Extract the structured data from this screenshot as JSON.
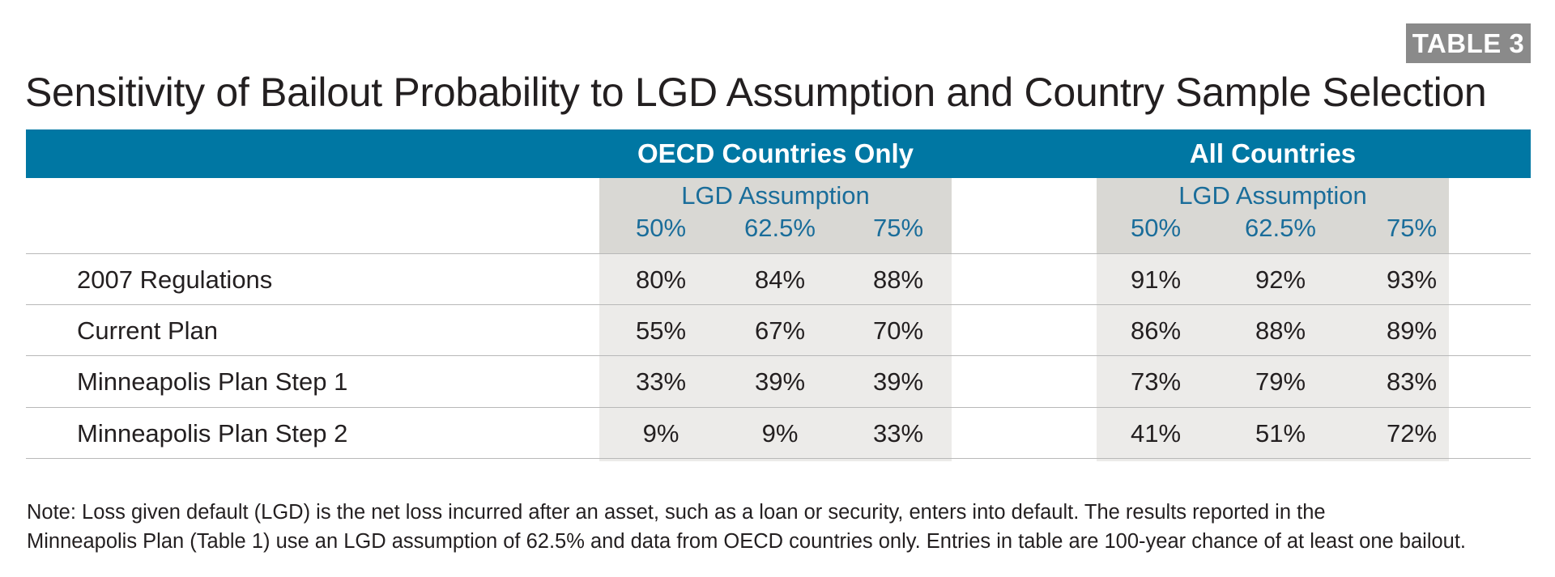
{
  "badge": "TABLE 3",
  "title": "Sensitivity of Bailout Probability to LGD Assumption and Country Sample Selection",
  "groups": [
    {
      "title": "OECD Countries Only",
      "subheader": "LGD Assumption",
      "columns": [
        "50%",
        "62.5%",
        "75%"
      ]
    },
    {
      "title": "All Countries",
      "subheader": "LGD Assumption",
      "columns": [
        "50%",
        "62.5%",
        "75%"
      ]
    }
  ],
  "rows": [
    {
      "label": "2007 Regulations",
      "oecd": [
        "80%",
        "84%",
        "88%"
      ],
      "all": [
        "91%",
        "92%",
        "93%"
      ]
    },
    {
      "label": "Current Plan",
      "oecd": [
        "55%",
        "67%",
        "70%"
      ],
      "all": [
        "86%",
        "88%",
        "89%"
      ]
    },
    {
      "label": "Minneapolis Plan Step 1",
      "oecd": [
        "33%",
        "39%",
        "39%"
      ],
      "all": [
        "73%",
        "79%",
        "83%"
      ]
    },
    {
      "label": "Minneapolis Plan Step 2",
      "oecd": [
        "9%",
        "9%",
        "33%"
      ],
      "all": [
        "41%",
        "51%",
        "72%"
      ]
    }
  ],
  "note": {
    "line1": "Note: Loss given default (LGD) is the net loss incurred after an asset, such as a loan or security, enters into default. The results reported in the",
    "line2": "Minneapolis Plan (Table 1) use an LGD assumption of 62.5% and data from OECD countries only. Entries in table are 100-year chance of at least one bailout."
  },
  "colors": {
    "header_blue": "#0077a3",
    "subheader_blue": "#1a6d9a",
    "badge_gray": "#8a8a8a",
    "panel_gray": "#ecebe9",
    "panel_head_gray": "#d9d8d4"
  }
}
